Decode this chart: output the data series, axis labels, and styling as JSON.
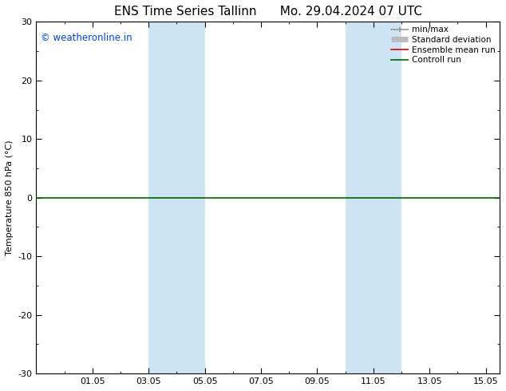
{
  "title_left": "ENS Time Series Tallinn",
  "title_right": "Mo. 29.04.2024 07 UTC",
  "ylabel": "Temperature 850 hPa (°C)",
  "ylim": [
    -30,
    30
  ],
  "yticks": [
    -30,
    -20,
    -10,
    0,
    10,
    20,
    30
  ],
  "xlim": [
    0,
    16.5
  ],
  "xtick_labels": [
    "01.05",
    "03.05",
    "05.05",
    "07.05",
    "09.05",
    "11.05",
    "13.05",
    "15.05"
  ],
  "xtick_positions": [
    2,
    4,
    6,
    8,
    10,
    12,
    14,
    16
  ],
  "shade_regions": [
    {
      "x_start": 4.0,
      "x_end": 6.0,
      "color": "#cde4f5",
      "alpha": 1.0
    },
    {
      "x_start": 11.0,
      "x_end": 13.0,
      "color": "#cde4f5",
      "alpha": 1.0
    }
  ],
  "hline_y": 0,
  "hline_color": "#006600",
  "hline_lw": 1.2,
  "watermark": "© weatheronline.in",
  "watermark_color": "#0044cc",
  "watermark_fontsize": 8.5,
  "legend_items": [
    {
      "label": "min/max",
      "color": "#999999",
      "lw": 1.2,
      "style": "minmax"
    },
    {
      "label": "Standard deviation",
      "color": "#bbbbbb",
      "lw": 5,
      "style": "thick"
    },
    {
      "label": "Ensemble mean run",
      "color": "#dd0000",
      "lw": 1.2,
      "style": "line"
    },
    {
      "label": "Controll run",
      "color": "#006600",
      "lw": 1.2,
      "style": "line"
    }
  ],
  "bg_color": "#ffffff",
  "plot_bg_color": "#ffffff",
  "title_fontsize": 11,
  "axis_fontsize": 8,
  "tick_fontsize": 8,
  "legend_fontsize": 7.5
}
